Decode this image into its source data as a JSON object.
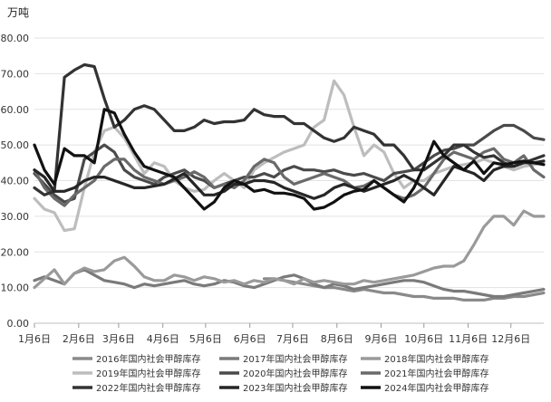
{
  "chart_data": {
    "type": "line",
    "unit_label": "万吨",
    "ylim": [
      0,
      80
    ],
    "y_ticks": [
      "0.00",
      "10.00",
      "20.00",
      "30.00",
      "40.00",
      "50.00",
      "60.00",
      "70.00",
      "80.00"
    ],
    "x_ticks": [
      "1月6日",
      "2月6日",
      "3月6日",
      "4月6日",
      "5月6日",
      "6月6日",
      "7月6日",
      "8月6日",
      "9月6日",
      "10月6日",
      "11月6日",
      "12月6日"
    ],
    "x_tick_weeks": [
      0,
      4.43,
      8.43,
      12.86,
      17.14,
      21.57,
      25.86,
      30.29,
      34.71,
      39.0,
      43.43,
      47.71
    ],
    "grid": true,
    "legend_position": "bottom",
    "series": [
      {
        "name": "2016年国内社会甲醇库存",
        "color": "#8a8a8a",
        "values": [
          null,
          null,
          null,
          null,
          null,
          null,
          null,
          null,
          null,
          null,
          null,
          null,
          null,
          null,
          null,
          null,
          null,
          null,
          null,
          null,
          null,
          null,
          null,
          12.5,
          12.5,
          12.0,
          11.5,
          11.0,
          10.5,
          10.0,
          10.0,
          9.5,
          9.0,
          9.5,
          9.0,
          8.5,
          8.5,
          8.0,
          7.5,
          7.5,
          7.0,
          7.0,
          7.0,
          6.5,
          6.5,
          6.5,
          7.0,
          7.0,
          7.5,
          7.5,
          8.0,
          8.5
        ]
      },
      {
        "name": "2017年国内社会甲醇库存",
        "color": "#7a7a7a",
        "values": [
          12.0,
          13.0,
          12.0,
          11.0,
          14.0,
          15.0,
          13.5,
          12.0,
          11.5,
          11.0,
          10.0,
          11.0,
          10.5,
          11.0,
          11.5,
          12.0,
          11.0,
          10.5,
          11.0,
          12.0,
          11.5,
          10.5,
          10.0,
          11.0,
          12.0,
          13.0,
          13.5,
          12.5,
          11.0,
          10.0,
          11.0,
          10.5,
          9.5,
          10.0,
          10.5,
          11.0,
          11.5,
          12.0,
          12.0,
          11.5,
          10.5,
          9.5,
          9.0,
          9.0,
          8.5,
          8.0,
          7.5,
          7.5,
          8.0,
          8.5,
          9.0,
          9.5
        ]
      },
      {
        "name": "2018年国内社会甲醇库存",
        "color": "#9a9a9a",
        "values": [
          10.0,
          12.5,
          15.0,
          11.0,
          14.0,
          15.5,
          14.5,
          15.0,
          17.5,
          18.5,
          16.0,
          13.0,
          12.0,
          12.0,
          13.5,
          13.0,
          12.0,
          13.0,
          12.5,
          11.5,
          12.0,
          11.0,
          12.0,
          11.5,
          12.5,
          12.0,
          11.0,
          12.5,
          11.5,
          12.0,
          11.5,
          11.0,
          11.0,
          12.0,
          11.5,
          12.0,
          12.5,
          13.0,
          13.5,
          14.5,
          15.5,
          16.0,
          16.0,
          17.5,
          22.0,
          27.0,
          30.0,
          30.0,
          27.5,
          31.5,
          30.0,
          30.0
        ]
      },
      {
        "name": "2019年国内社会甲醇库存",
        "color": "#bdbdbd",
        "values": [
          35.0,
          32.0,
          31.0,
          26.0,
          26.5,
          38.0,
          48.0,
          54.0,
          55.0,
          52.0,
          47.0,
          42.0,
          45.0,
          44.0,
          40.0,
          38.0,
          37.0,
          37.5,
          40.0,
          42.0,
          40.0,
          38.0,
          43.0,
          45.0,
          46.5,
          48.0,
          49.0,
          50.0,
          55.0,
          57.0,
          68.0,
          64.0,
          55.0,
          47.0,
          50.0,
          48.0,
          42.0,
          38.0,
          40.0,
          40.0,
          42.0,
          43.0,
          44.0,
          44.5,
          45.0,
          46.0,
          45.0,
          44.0,
          43.0,
          44.0,
          44.5,
          45.0
        ]
      },
      {
        "name": "2020年国内社会甲醇库存",
        "color": "#4a4a4a",
        "values": [
          42.0,
          39.0,
          36.0,
          34.0,
          35.0,
          46.0,
          48.0,
          50.0,
          48.0,
          43.0,
          41.0,
          40.0,
          39.0,
          41.0,
          42.0,
          43.0,
          41.0,
          40.0,
          38.0,
          39.0,
          40.0,
          41.0,
          41.0,
          42.0,
          41.0,
          43.0,
          44.0,
          43.0,
          43.0,
          42.5,
          43.0,
          42.0,
          41.5,
          42.0,
          41.0,
          40.0,
          42.0,
          42.5,
          43.0,
          45.0,
          47.0,
          48.5,
          49.0,
          50.0,
          50.0,
          52.0,
          54.0,
          55.5,
          55.5,
          54.0,
          52.0,
          51.5
        ]
      },
      {
        "name": "2021年国内社会甲醇库存",
        "color": "#6a6a6a",
        "values": [
          43.0,
          38.0,
          35.0,
          33.0,
          36.0,
          38.0,
          40.0,
          44.0,
          46.0,
          46.0,
          43.0,
          41.0,
          40.0,
          39.0,
          40.0,
          41.0,
          42.5,
          41.0,
          38.0,
          39.0,
          38.0,
          40.0,
          44.0,
          46.0,
          45.0,
          41.0,
          39.0,
          40.0,
          41.0,
          42.0,
          41.0,
          40.0,
          38.0,
          38.5,
          40.0,
          38.0,
          36.0,
          35.0,
          36.0,
          38.0,
          42.0,
          46.0,
          48.0,
          47.0,
          46.0,
          48.0,
          49.0,
          46.0,
          45.0,
          47.0,
          43.0,
          41.0
        ]
      },
      {
        "name": "2022年国内社会甲醇库存",
        "color": "#333333",
        "values": [
          38.0,
          36.0,
          37.0,
          69.0,
          71.0,
          72.5,
          72.0,
          63.0,
          55.0,
          57.0,
          60.0,
          61.0,
          60.0,
          57.0,
          54.0,
          54.0,
          55.0,
          57.0,
          56.0,
          56.5,
          56.5,
          57.0,
          60.0,
          58.5,
          58.0,
          58.0,
          56.0,
          56.0,
          54.0,
          52.0,
          51.0,
          52.0,
          55.0,
          54.0,
          53.0,
          50.0,
          50.0,
          47.0,
          43.0,
          43.0,
          45.0,
          47.0,
          50.0,
          50.0,
          48.0,
          46.5,
          47.0,
          45.0,
          44.0,
          45.0,
          46.0,
          47.0
        ]
      },
      {
        "name": "2023年国内社会甲醇库存",
        "color": "#262626",
        "values": [
          43.0,
          41.0,
          37.0,
          37.0,
          38.0,
          40.0,
          41.0,
          41.0,
          40.0,
          39.0,
          38.0,
          38.0,
          38.5,
          39.0,
          40.5,
          42.0,
          39.0,
          36.0,
          36.0,
          37.0,
          39.0,
          39.0,
          40.0,
          40.0,
          39.5,
          38.0,
          37.0,
          36.0,
          35.0,
          36.0,
          38.0,
          39.0,
          38.0,
          37.0,
          38.0,
          39.0,
          40.0,
          41.5,
          40.0,
          38.0,
          36.0,
          40.0,
          44.0,
          43.0,
          42.0,
          40.0,
          43.0,
          44.0,
          44.0,
          45.0,
          45.0,
          45.5
        ]
      },
      {
        "name": "2024年国内社会甲醇库存",
        "color": "#111111",
        "values": [
          50.0,
          43.0,
          39.0,
          49.0,
          47.0,
          47.0,
          45.0,
          60.0,
          59.0,
          53.0,
          48.0,
          44.0,
          43.0,
          42.0,
          41.0,
          38.0,
          35.0,
          32.0,
          34.0,
          38.0,
          40.0,
          39.0,
          37.0,
          37.5,
          36.5,
          36.5,
          36.0,
          35.0,
          32.0,
          32.5,
          34.0,
          36.0,
          37.0,
          37.5,
          40.0,
          38.0,
          36.0,
          34.0,
          38.0,
          44.0,
          51.0,
          47.0,
          45.0,
          43.0,
          45.5,
          42.0,
          45.0,
          44.5,
          45.0,
          45.5,
          45.0,
          44.5
        ]
      }
    ]
  }
}
